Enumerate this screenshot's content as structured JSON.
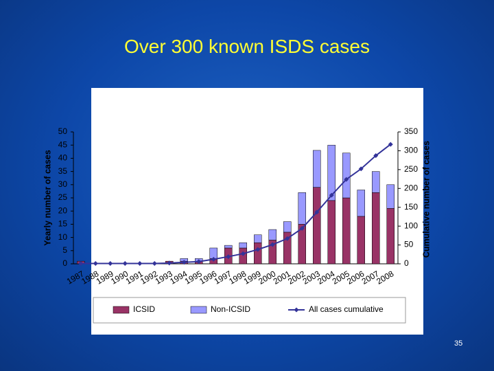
{
  "chart_data": {
    "type": "bar-line",
    "title": "Over 300 known ISDS cases",
    "y_label": "Yearly number of cases",
    "y2_label": "Cumulative number of cases",
    "categories": [
      "1987",
      "1988",
      "1989",
      "1990",
      "1991",
      "1992",
      "1993",
      "1994",
      "1995",
      "1996",
      "1997",
      "1998",
      "1999",
      "2000",
      "2001",
      "2002",
      "2003",
      "2004",
      "2005",
      "2006",
      "2007",
      "2008"
    ],
    "series": [
      {
        "name": "ICSID",
        "color": "#993366",
        "stacked": true,
        "values": [
          1,
          0,
          0,
          0,
          0,
          0,
          1,
          1,
          1,
          2,
          6,
          6,
          8,
          9,
          12,
          15,
          29,
          24,
          25,
          18,
          27,
          21
        ]
      },
      {
        "name": "Non-ICSID",
        "color": "#9999ff",
        "stacked": true,
        "values": [
          0,
          0,
          0,
          0,
          0,
          0,
          0,
          1,
          1,
          4,
          1,
          2,
          3,
          4,
          4,
          12,
          14,
          21,
          17,
          10,
          8,
          9
        ]
      },
      {
        "name": "All cases cumulative",
        "color": "#333399",
        "axis": "y2",
        "values": [
          1,
          1,
          1,
          1,
          1,
          1,
          2,
          4,
          6,
          12,
          19,
          27,
          38,
          51,
          67,
          94,
          137,
          182,
          224,
          252,
          287,
          317
        ]
      }
    ],
    "ylim": [
      0,
      50
    ],
    "yticks": [
      0,
      5,
      10,
      15,
      20,
      25,
      30,
      35,
      40,
      45,
      50
    ],
    "y2lim": [
      0,
      350
    ],
    "y2ticks": [
      0,
      50,
      100,
      150,
      200,
      250,
      300,
      350
    ],
    "legend": "bottom"
  },
  "slide_number": "35"
}
